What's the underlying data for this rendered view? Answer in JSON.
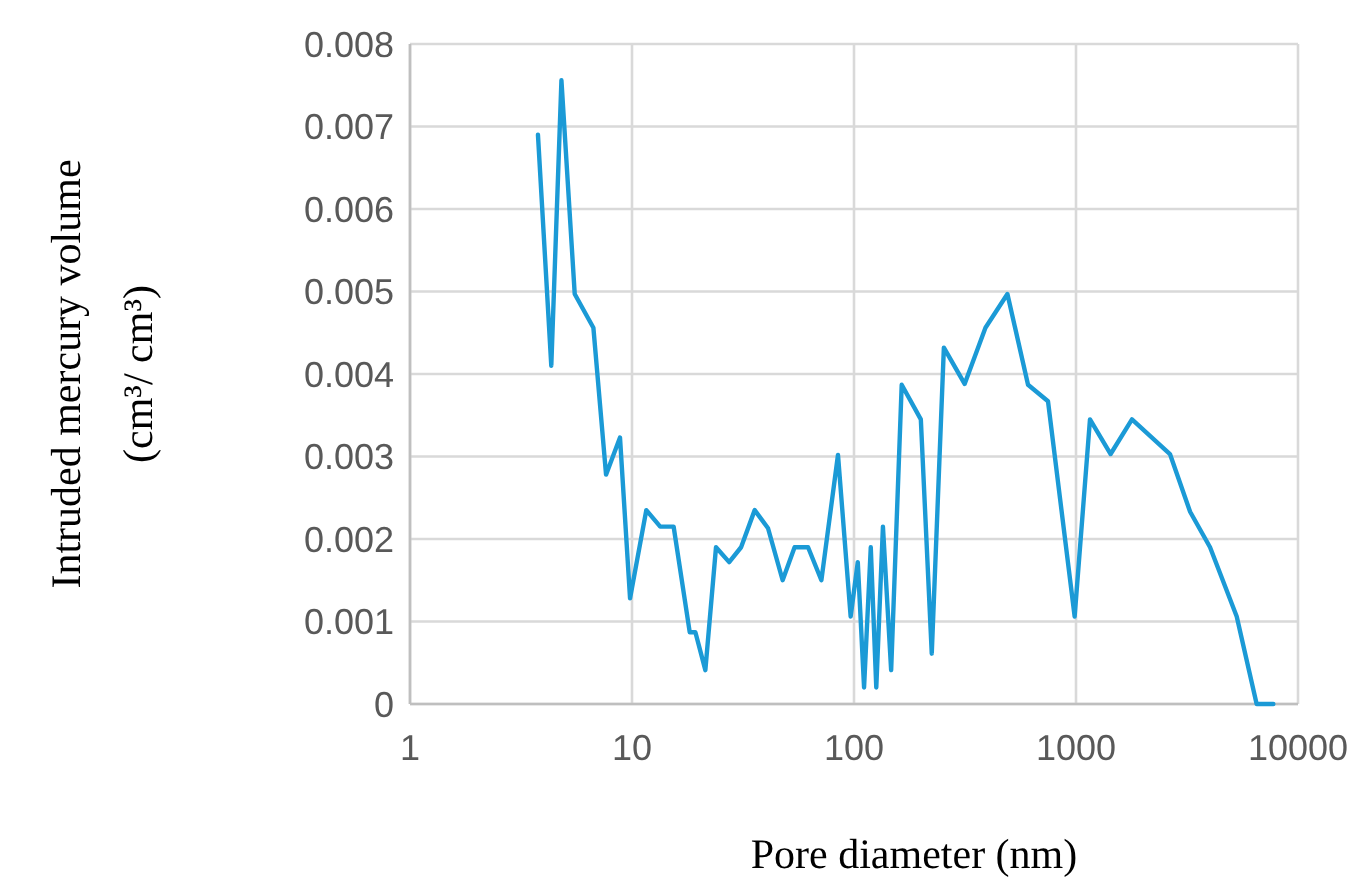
{
  "chart_data": {
    "type": "line",
    "xlabel": "Pore diameter (nm)",
    "ylabel": "Intruded mercury volume (cm³/ cm³)",
    "log": "x",
    "grid": true,
    "marker": "none",
    "line_style": "solid",
    "xlim": [
      1,
      10000
    ],
    "xticks": [
      1,
      10,
      100,
      1000,
      10000
    ],
    "ylim": [
      0,
      0.008
    ],
    "yticks": [
      0,
      0.001,
      0.002,
      0.003,
      0.004,
      0.005,
      0.006,
      0.007,
      0.008
    ],
    "series": [
      {
        "color": "#1b9ad6",
        "x": [
          3.77,
          4.33,
          4.81,
          5.52,
          6.7,
          7.64,
          8.83,
          9.8,
          11.6,
          13.4,
          15.4,
          18.2,
          19.3,
          21.4,
          23.9,
          27.4,
          31,
          35.7,
          41,
          47.7,
          54,
          62.1,
          71.3,
          84.7,
          96.6,
          104,
          111,
          119,
          126,
          135,
          147,
          164,
          200,
          224,
          254,
          315,
          391,
          491,
          608,
          748,
          986,
          1156,
          1432,
          1787,
          2650,
          3266,
          4016,
          5296,
          6512,
          7745
        ],
        "values": [
          0.0069,
          0.0041,
          0.00756,
          0.00497,
          0.00456,
          0.00278,
          0.00323,
          0.00128,
          0.00235,
          0.00215,
          0.00215,
          0.00087,
          0.00087,
          0.00041,
          0.0019,
          0.00172,
          0.0019,
          0.00235,
          0.00213,
          0.0015,
          0.0019,
          0.0019,
          0.0015,
          0.00302,
          0.00106,
          0.00172,
          0.0002,
          0.0019,
          0.0002,
          0.00215,
          0.00041,
          0.00387,
          0.00345,
          0.00061,
          0.00432,
          0.00388,
          0.00456,
          0.00497,
          0.00387,
          0.00367,
          0.00106,
          0.00345,
          0.00303,
          0.00345,
          0.00303,
          0.00233,
          0.0019,
          0.00106,
          0,
          0
        ]
      }
    ]
  }
}
